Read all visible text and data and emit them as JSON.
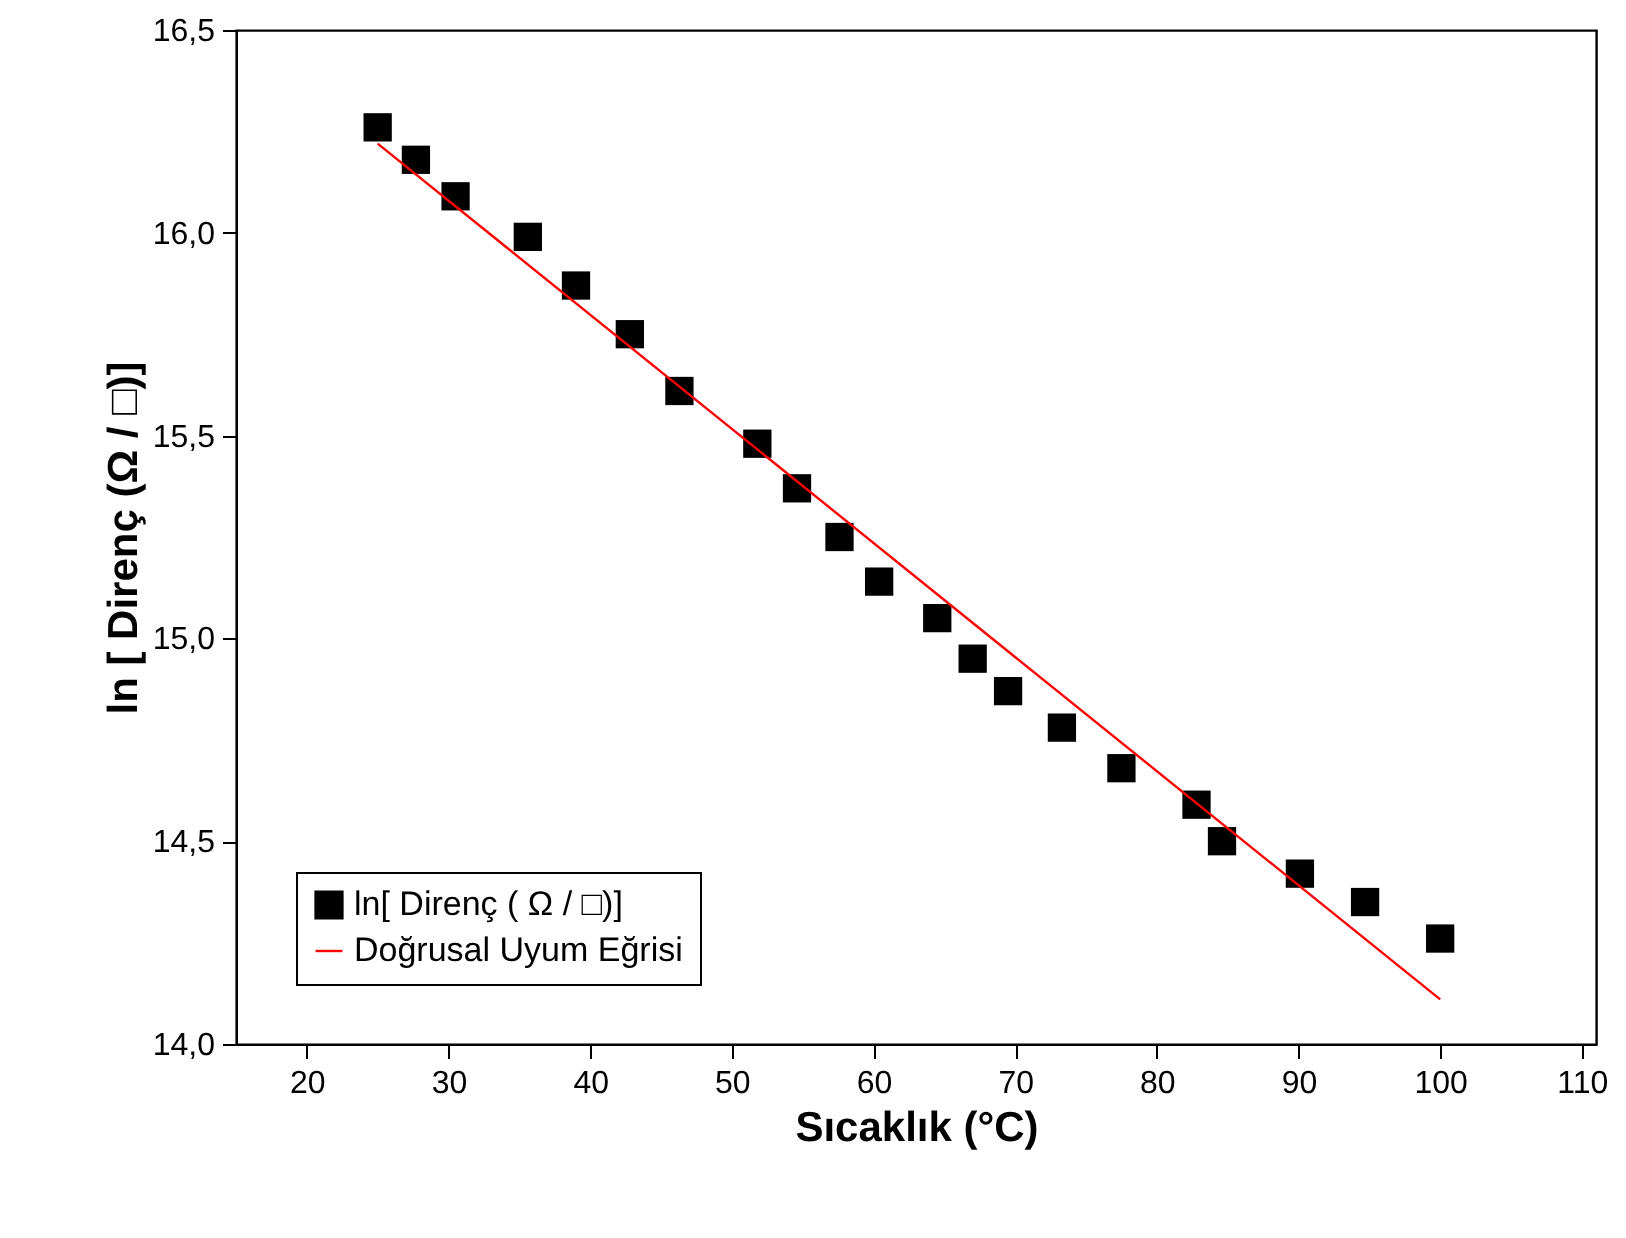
{
  "chart_data": {
    "type": "scatter",
    "xlabel": "Sıcaklık (°C)",
    "ylabel": "ln [ Direnç (Ω / □)]",
    "xlim": [
      15,
      111
    ],
    "xticks": [
      20,
      30,
      40,
      50,
      60,
      70,
      80,
      90,
      100,
      110
    ],
    "ylim": [
      14.0,
      16.5
    ],
    "yticks": [
      {
        "value": 14.0,
        "label": "14,0"
      },
      {
        "value": 14.5,
        "label": "14,5"
      },
      {
        "value": 15.0,
        "label": "15,0"
      },
      {
        "value": 15.5,
        "label": "15,5"
      },
      {
        "value": 16.0,
        "label": "16,0"
      },
      {
        "value": 16.5,
        "label": "16,5"
      }
    ],
    "legend": "bottom left",
    "series": [
      {
        "name": "ln[ Direnç ( Ω / □)]",
        "marker": "square",
        "color": "#000000",
        "x": [
          25,
          27.7,
          30.5,
          35.6,
          39.0,
          42.8,
          46.3,
          51.8,
          54.6,
          57.6,
          60.4,
          64.5,
          67.0,
          69.5,
          73.3,
          77.5,
          82.8,
          84.6,
          90.1,
          94.7,
          100
        ],
        "values": [
          16.26,
          16.18,
          16.09,
          15.99,
          15.87,
          15.75,
          15.61,
          15.48,
          15.37,
          15.25,
          15.14,
          15.05,
          14.95,
          14.87,
          14.78,
          14.68,
          14.59,
          14.5,
          14.42,
          14.35,
          14.26
        ]
      },
      {
        "name": "Doğrusal Uyum Eğrisi",
        "type": "line",
        "color": "#ff0000",
        "x": [
          25,
          100
        ],
        "values": [
          16.22,
          14.11
        ]
      }
    ]
  }
}
